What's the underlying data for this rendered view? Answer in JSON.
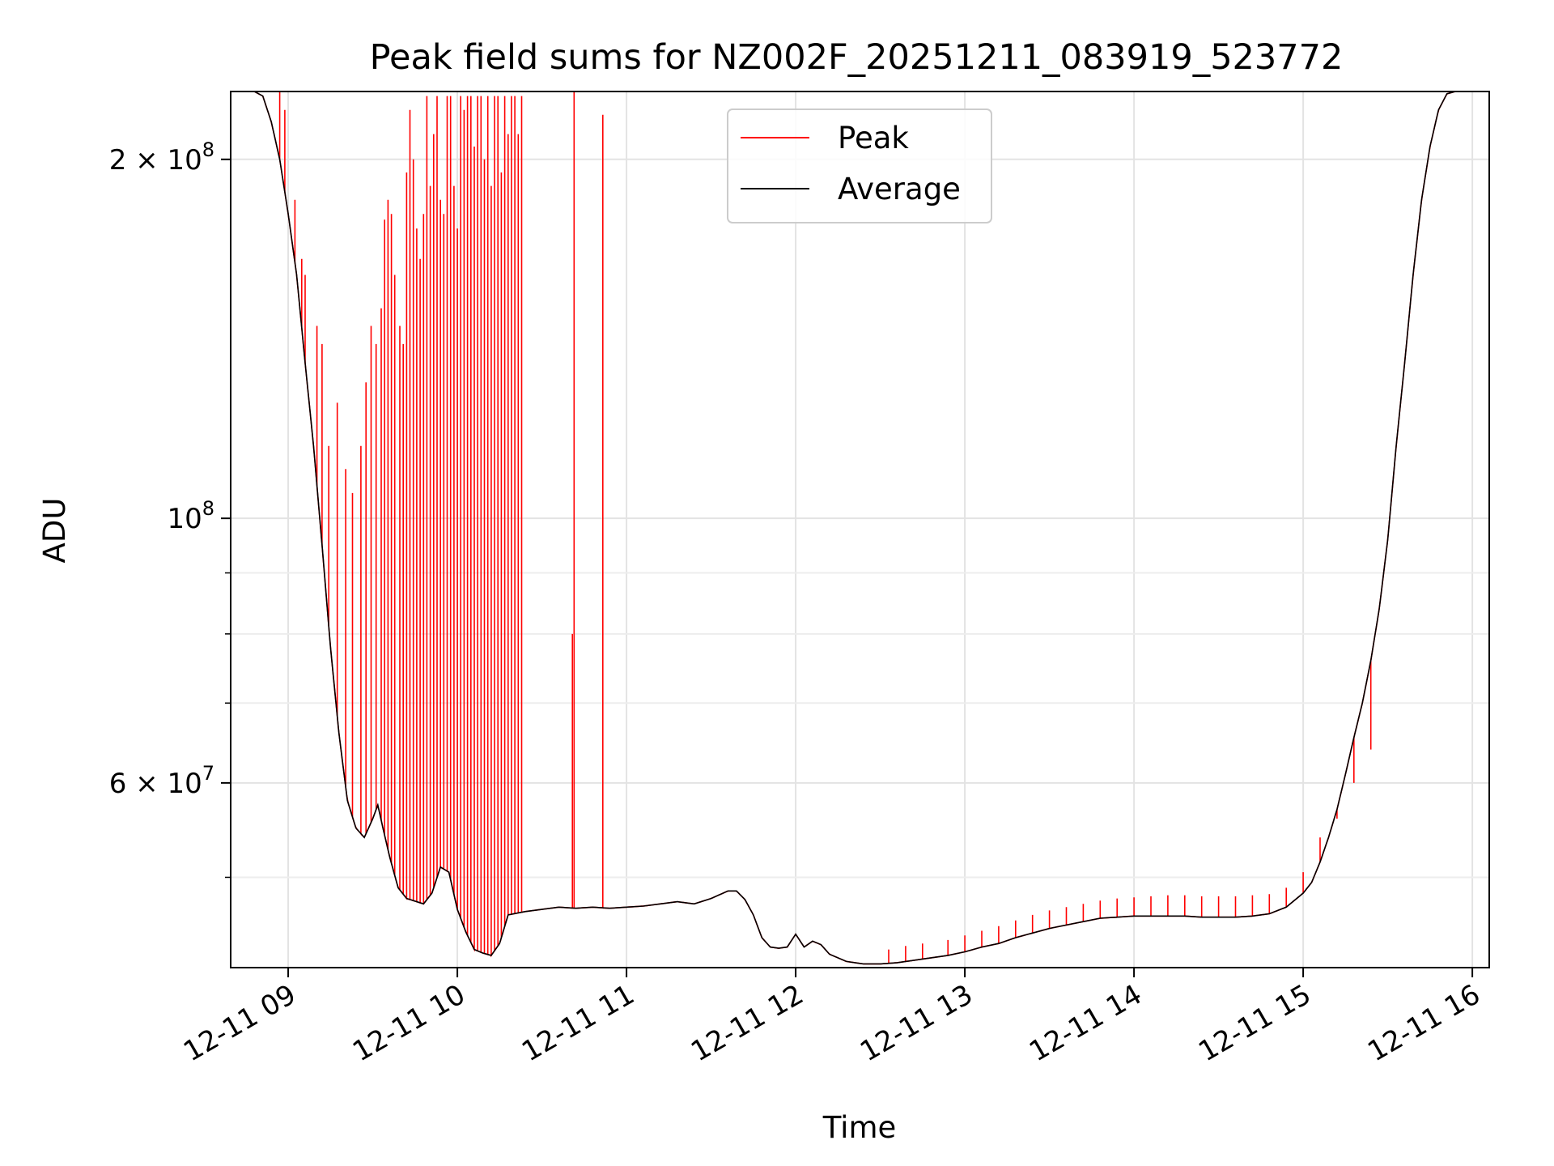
{
  "chart_data": {
    "type": "line",
    "title": "Peak field sums for NZ002F_20251211_083919_523772",
    "xlabel": "Time",
    "ylabel": "ADU",
    "yscale": "log",
    "xlim_hours": [
      8.66,
      16.1
    ],
    "ylim": [
      42000000,
      228000000
    ],
    "grid": true,
    "legend_position": "top-center",
    "x_ticks": [
      {
        "hour": 9,
        "label": "12-11 09"
      },
      {
        "hour": 10,
        "label": "12-11 10"
      },
      {
        "hour": 11,
        "label": "12-11 11"
      },
      {
        "hour": 12,
        "label": "12-11 12"
      },
      {
        "hour": 13,
        "label": "12-11 13"
      },
      {
        "hour": 14,
        "label": "12-11 14"
      },
      {
        "hour": 15,
        "label": "12-11 15"
      },
      {
        "hour": 16,
        "label": "12-11 16"
      }
    ],
    "y_ticks": [
      {
        "value": 200000000,
        "mantissa": "2",
        "times": "×",
        "base": "10",
        "exp": "8"
      },
      {
        "value": 100000000,
        "mantissa": "",
        "times": "",
        "base": "10",
        "exp": "8"
      },
      {
        "value": 60000000,
        "mantissa": "6",
        "times": "×",
        "base": "10",
        "exp": "7"
      }
    ],
    "y_minor_ticks": [
      50000000,
      70000000,
      80000000,
      90000000
    ],
    "series": [
      {
        "name": "Peak",
        "color": "#ff0000",
        "baseline": "Average",
        "spikes": [
          [
            8.95,
            228000000
          ],
          [
            8.98,
            220000000
          ],
          [
            9.04,
            185000000
          ],
          [
            9.08,
            165000000
          ],
          [
            9.1,
            160000000
          ],
          [
            9.17,
            145000000
          ],
          [
            9.2,
            140000000
          ],
          [
            9.24,
            115000000
          ],
          [
            9.29,
            125000000
          ],
          [
            9.34,
            110000000
          ],
          [
            9.38,
            105000000
          ],
          [
            9.43,
            115000000
          ],
          [
            9.46,
            130000000
          ],
          [
            9.49,
            145000000
          ],
          [
            9.52,
            140000000
          ],
          [
            9.55,
            150000000
          ],
          [
            9.57,
            178000000
          ],
          [
            9.59,
            185000000
          ],
          [
            9.61,
            180000000
          ],
          [
            9.63,
            160000000
          ],
          [
            9.66,
            145000000
          ],
          [
            9.68,
            140000000
          ],
          [
            9.7,
            195000000
          ],
          [
            9.72,
            220000000
          ],
          [
            9.74,
            200000000
          ],
          [
            9.76,
            175000000
          ],
          [
            9.78,
            165000000
          ],
          [
            9.8,
            180000000
          ],
          [
            9.82,
            226000000
          ],
          [
            9.84,
            190000000
          ],
          [
            9.86,
            210000000
          ],
          [
            9.88,
            226000000
          ],
          [
            9.9,
            185000000
          ],
          [
            9.92,
            180000000
          ],
          [
            9.94,
            226000000
          ],
          [
            9.96,
            226000000
          ],
          [
            9.98,
            190000000
          ],
          [
            10.0,
            175000000
          ],
          [
            10.02,
            226000000
          ],
          [
            10.04,
            220000000
          ],
          [
            10.06,
            226000000
          ],
          [
            10.08,
            226000000
          ],
          [
            10.1,
            205000000
          ],
          [
            10.12,
            226000000
          ],
          [
            10.14,
            226000000
          ],
          [
            10.16,
            200000000
          ],
          [
            10.18,
            226000000
          ],
          [
            10.2,
            190000000
          ],
          [
            10.22,
            226000000
          ],
          [
            10.24,
            226000000
          ],
          [
            10.26,
            195000000
          ],
          [
            10.28,
            226000000
          ],
          [
            10.3,
            210000000
          ],
          [
            10.32,
            226000000
          ],
          [
            10.34,
            226000000
          ],
          [
            10.36,
            210000000
          ],
          [
            10.38,
            226000000
          ],
          [
            10.68,
            80000000
          ],
          [
            10.69,
            228000000
          ],
          [
            10.86,
            218000000
          ],
          [
            12.55,
            43500000
          ],
          [
            12.65,
            43800000
          ],
          [
            12.75,
            44000000
          ],
          [
            12.9,
            44300000
          ],
          [
            13.0,
            44700000
          ],
          [
            13.1,
            45100000
          ],
          [
            13.2,
            45500000
          ],
          [
            13.3,
            46000000
          ],
          [
            13.4,
            46500000
          ],
          [
            13.5,
            46900000
          ],
          [
            13.6,
            47200000
          ],
          [
            13.7,
            47500000
          ],
          [
            13.8,
            47800000
          ],
          [
            13.9,
            48000000
          ],
          [
            14.0,
            48100000
          ],
          [
            14.1,
            48200000
          ],
          [
            14.2,
            48300000
          ],
          [
            14.3,
            48300000
          ],
          [
            14.4,
            48200000
          ],
          [
            14.5,
            48200000
          ],
          [
            14.6,
            48200000
          ],
          [
            14.7,
            48300000
          ],
          [
            14.8,
            48400000
          ],
          [
            14.9,
            49000000
          ],
          [
            15.0,
            50500000
          ],
          [
            15.1,
            54000000
          ],
          [
            15.2,
            56000000
          ],
          [
            15.3,
            60000000
          ],
          [
            15.4,
            64000000
          ]
        ]
      },
      {
        "name": "Average",
        "color": "#000000",
        "points": [
          [
            8.66,
            228000000
          ],
          [
            8.8,
            228000000
          ],
          [
            8.85,
            226000000
          ],
          [
            8.9,
            215000000
          ],
          [
            8.95,
            200000000
          ],
          [
            9.0,
            180000000
          ],
          [
            9.05,
            160000000
          ],
          [
            9.1,
            135000000
          ],
          [
            9.15,
            115000000
          ],
          [
            9.2,
            95000000
          ],
          [
            9.25,
            78000000
          ],
          [
            9.3,
            66000000
          ],
          [
            9.35,
            58000000
          ],
          [
            9.4,
            55000000
          ],
          [
            9.45,
            54000000
          ],
          [
            9.5,
            56000000
          ],
          [
            9.53,
            57500000
          ],
          [
            9.56,
            55000000
          ],
          [
            9.6,
            52000000
          ],
          [
            9.65,
            49000000
          ],
          [
            9.7,
            48000000
          ],
          [
            9.8,
            47500000
          ],
          [
            9.85,
            48500000
          ],
          [
            9.9,
            51000000
          ],
          [
            9.95,
            50500000
          ],
          [
            10.0,
            47000000
          ],
          [
            10.05,
            45000000
          ],
          [
            10.1,
            43500000
          ],
          [
            10.15,
            43200000
          ],
          [
            10.2,
            43000000
          ],
          [
            10.25,
            44000000
          ],
          [
            10.3,
            46500000
          ],
          [
            10.4,
            46800000
          ],
          [
            10.5,
            47000000
          ],
          [
            10.6,
            47200000
          ],
          [
            10.7,
            47100000
          ],
          [
            10.8,
            47200000
          ],
          [
            10.9,
            47100000
          ],
          [
            11.0,
            47200000
          ],
          [
            11.1,
            47300000
          ],
          [
            11.2,
            47500000
          ],
          [
            11.3,
            47700000
          ],
          [
            11.4,
            47500000
          ],
          [
            11.5,
            48000000
          ],
          [
            11.6,
            48700000
          ],
          [
            11.65,
            48700000
          ],
          [
            11.7,
            47900000
          ],
          [
            11.75,
            46500000
          ],
          [
            11.8,
            44500000
          ],
          [
            11.85,
            43700000
          ],
          [
            11.9,
            43600000
          ],
          [
            11.95,
            43700000
          ],
          [
            12.0,
            44800000
          ],
          [
            12.05,
            43700000
          ],
          [
            12.1,
            44200000
          ],
          [
            12.15,
            43900000
          ],
          [
            12.2,
            43100000
          ],
          [
            12.3,
            42500000
          ],
          [
            12.4,
            42300000
          ],
          [
            12.5,
            42300000
          ],
          [
            12.6,
            42400000
          ],
          [
            12.7,
            42600000
          ],
          [
            12.8,
            42800000
          ],
          [
            12.9,
            43000000
          ],
          [
            13.0,
            43300000
          ],
          [
            13.1,
            43700000
          ],
          [
            13.2,
            44000000
          ],
          [
            13.3,
            44500000
          ],
          [
            13.4,
            44900000
          ],
          [
            13.5,
            45300000
          ],
          [
            13.6,
            45600000
          ],
          [
            13.7,
            45900000
          ],
          [
            13.8,
            46200000
          ],
          [
            13.9,
            46300000
          ],
          [
            14.0,
            46400000
          ],
          [
            14.1,
            46400000
          ],
          [
            14.2,
            46400000
          ],
          [
            14.3,
            46400000
          ],
          [
            14.4,
            46300000
          ],
          [
            14.5,
            46300000
          ],
          [
            14.6,
            46300000
          ],
          [
            14.7,
            46400000
          ],
          [
            14.8,
            46600000
          ],
          [
            14.9,
            47200000
          ],
          [
            15.0,
            48500000
          ],
          [
            15.05,
            49500000
          ],
          [
            15.1,
            51500000
          ],
          [
            15.15,
            54000000
          ],
          [
            15.2,
            57000000
          ],
          [
            15.25,
            61000000
          ],
          [
            15.3,
            65500000
          ],
          [
            15.35,
            70000000
          ],
          [
            15.4,
            76000000
          ],
          [
            15.45,
            84000000
          ],
          [
            15.5,
            96000000
          ],
          [
            15.55,
            115000000
          ],
          [
            15.6,
            135000000
          ],
          [
            15.65,
            160000000
          ],
          [
            15.7,
            185000000
          ],
          [
            15.75,
            205000000
          ],
          [
            15.8,
            220000000
          ],
          [
            15.85,
            227000000
          ],
          [
            15.9,
            228000000
          ],
          [
            16.1,
            228000000
          ]
        ]
      }
    ]
  }
}
